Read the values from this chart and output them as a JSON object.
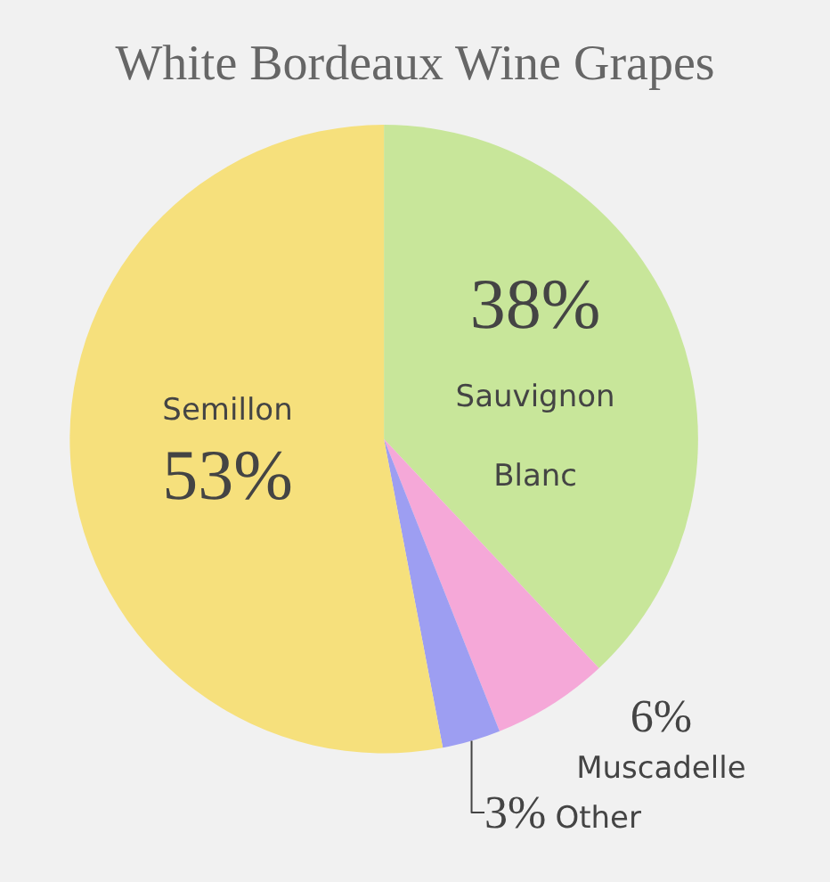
{
  "chart_data": {
    "type": "pie",
    "title": "White Bordeaux Wine Grapes",
    "categories": [
      "Sauvignon Blanc",
      "Muscadelle",
      "Other",
      "Semillon"
    ],
    "values": [
      38,
      6,
      3,
      53
    ],
    "value_labels": [
      "38%",
      "6%",
      "3%",
      "53%"
    ],
    "colors": [
      "#c8e69a",
      "#f5a8d8",
      "#9d9ef2",
      "#f6e07c"
    ],
    "legend": false
  }
}
